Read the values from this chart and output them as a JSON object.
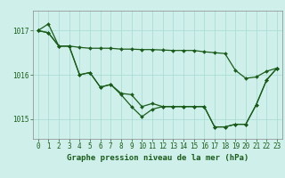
{
  "title": "Graphe pression niveau de la mer (hPa)",
  "background_color": "#cff0ea",
  "grid_color": "#aaddd5",
  "line_color": "#1a5c1a",
  "hours": [
    0,
    1,
    2,
    3,
    4,
    5,
    6,
    7,
    8,
    9,
    10,
    11,
    12,
    13,
    14,
    15,
    16,
    17,
    18,
    19,
    20,
    21,
    22,
    23
  ],
  "line_upper": [
    1017.0,
    1016.95,
    1016.65,
    1016.65,
    1016.62,
    1016.6,
    1016.6,
    1016.6,
    1016.58,
    1016.58,
    1016.57,
    1016.57,
    1016.56,
    1016.55,
    1016.55,
    1016.55,
    1016.52,
    1016.5,
    1016.48,
    1016.1,
    1015.92,
    1015.95,
    1016.08,
    1016.15
  ],
  "line_mid": [
    1017.0,
    1017.15,
    1016.65,
    1016.65,
    1016.0,
    1016.05,
    1015.72,
    1015.78,
    1015.58,
    1015.55,
    1015.28,
    1015.35,
    1015.28,
    1015.28,
    1015.28,
    1015.28,
    1015.28,
    1014.82,
    1014.82,
    1014.88,
    1014.88,
    1015.32,
    1015.88,
    1016.15
  ],
  "line_low": [
    1017.0,
    1016.95,
    1016.65,
    1016.65,
    1016.0,
    1016.05,
    1015.72,
    1015.78,
    1015.55,
    1015.28,
    1015.05,
    1015.22,
    1015.28,
    1015.28,
    1015.28,
    1015.28,
    1015.28,
    1014.82,
    1014.82,
    1014.88,
    1014.88,
    1015.32,
    1015.88,
    1016.15
  ],
  "ylim": [
    1014.55,
    1017.45
  ],
  "yticks": [
    1015,
    1016,
    1017
  ],
  "xlim": [
    -0.5,
    23.5
  ],
  "marker_size": 2.0,
  "line_width": 0.9,
  "tick_fontsize": 5.5,
  "label_fontsize": 6.5
}
